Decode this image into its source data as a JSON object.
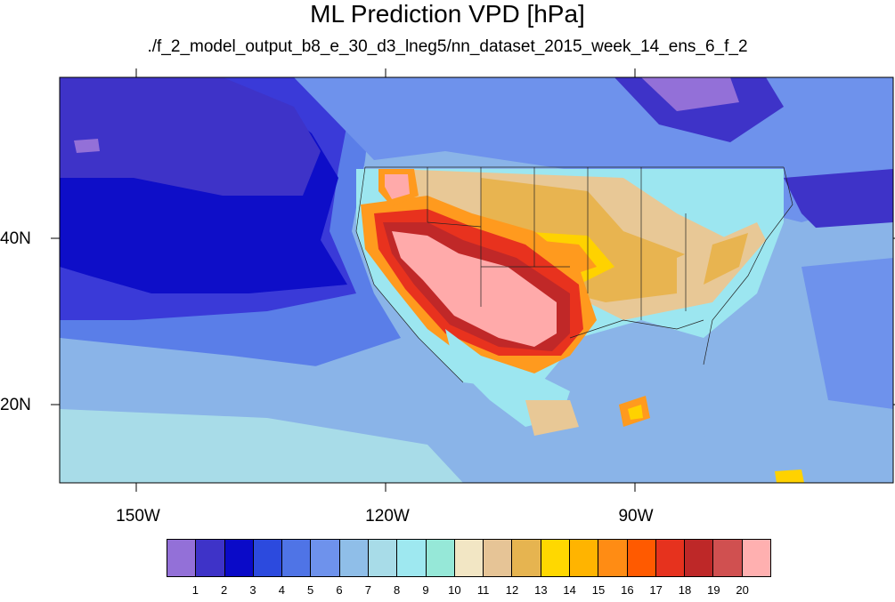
{
  "title": "ML Prediction VPD [hPa]",
  "subtitle": "./f_2_model_output_b8_e_30_d3_lneg5/nn_dataset_2015_week_14_ens_6_f_2",
  "map": {
    "lon_labels": [
      "150W",
      "120W",
      "90W"
    ],
    "lat_labels": [
      "40N",
      "20N"
    ],
    "field_colors": {
      "ocean_deep": "#0e0ec8",
      "ocean_mid": "#3a3ad8",
      "ocean_light": "#5a7ee8",
      "ocean_pale": "#8ab4e8",
      "cyan": "#9ce6f0",
      "tan": "#e8c896",
      "gold": "#e8b450",
      "yellow": "#ffd200",
      "orange": "#ff9a1e",
      "red": "#e8321e",
      "darkred": "#c02828",
      "pink": "#ffaaaa"
    }
  },
  "colorbar": {
    "labels": [
      "1",
      "2",
      "3",
      "4",
      "5",
      "6",
      "7",
      "8",
      "9",
      "10",
      "11",
      "12",
      "13",
      "14",
      "15",
      "16",
      "17",
      "18",
      "19",
      "20"
    ],
    "colors": [
      "#9370d8",
      "#3e33c8",
      "#0a0ac8",
      "#2c4ade",
      "#4f74e6",
      "#6e92ec",
      "#8fbee8",
      "#a8dce8",
      "#9ee8f0",
      "#96e8d8",
      "#f2e6c4",
      "#e6c496",
      "#e6b450",
      "#ffd800",
      "#ffb400",
      "#ff8c14",
      "#ff5a00",
      "#e6321e",
      "#be2828",
      "#d05050",
      "#ffb0b0"
    ]
  }
}
